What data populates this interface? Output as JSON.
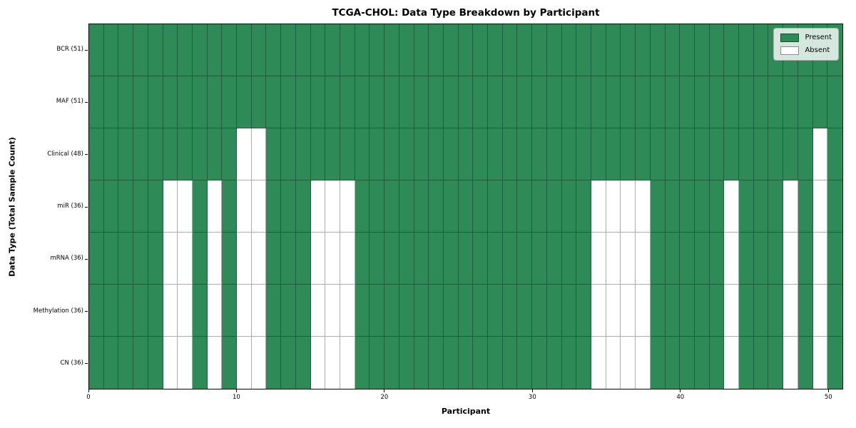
{
  "chart_data": {
    "type": "heatmap",
    "title": "TCGA-CHOL: Data Type Breakdown by Participant",
    "xlabel": "Participant",
    "ylabel": "Data Type (Total Sample Count)",
    "n_participants": 51,
    "x_ticks": [
      0,
      10,
      20,
      30,
      40,
      50
    ],
    "x_range": [
      0,
      51
    ],
    "grid": "cell-borders",
    "rows": [
      {
        "label": "BCR (51)",
        "present_count": 51,
        "absent_participants": []
      },
      {
        "label": "MAF (51)",
        "present_count": 51,
        "absent_participants": []
      },
      {
        "label": "Clinical (48)",
        "present_count": 48,
        "absent_participants": [
          10,
          11,
          49
        ]
      },
      {
        "label": "miR (36)",
        "present_count": 36,
        "absent_participants": [
          5,
          6,
          8,
          10,
          11,
          15,
          16,
          17,
          34,
          35,
          36,
          37,
          43,
          47,
          49
        ]
      },
      {
        "label": "mRNA (36)",
        "present_count": 36,
        "absent_participants": [
          5,
          6,
          8,
          10,
          11,
          15,
          16,
          17,
          34,
          35,
          36,
          37,
          43,
          47,
          49
        ]
      },
      {
        "label": "Methylation (36)",
        "present_count": 36,
        "absent_participants": [
          5,
          6,
          8,
          10,
          11,
          15,
          16,
          17,
          34,
          35,
          36,
          37,
          43,
          47,
          49
        ]
      },
      {
        "label": "CN (36)",
        "present_count": 36,
        "absent_participants": [
          5,
          6,
          8,
          10,
          11,
          15,
          16,
          17,
          34,
          35,
          36,
          37,
          43,
          47,
          49
        ]
      }
    ],
    "legend": {
      "position": "upper-right",
      "items": [
        {
          "label": "Present",
          "color": "#2e8b57"
        },
        {
          "label": "Absent",
          "color": "#ffffff"
        }
      ]
    },
    "colors": {
      "present": "#2e8b57",
      "absent": "#ffffff",
      "cell_edge": "rgba(0,0,0,0.32)",
      "plot_border": "#000000"
    }
  }
}
